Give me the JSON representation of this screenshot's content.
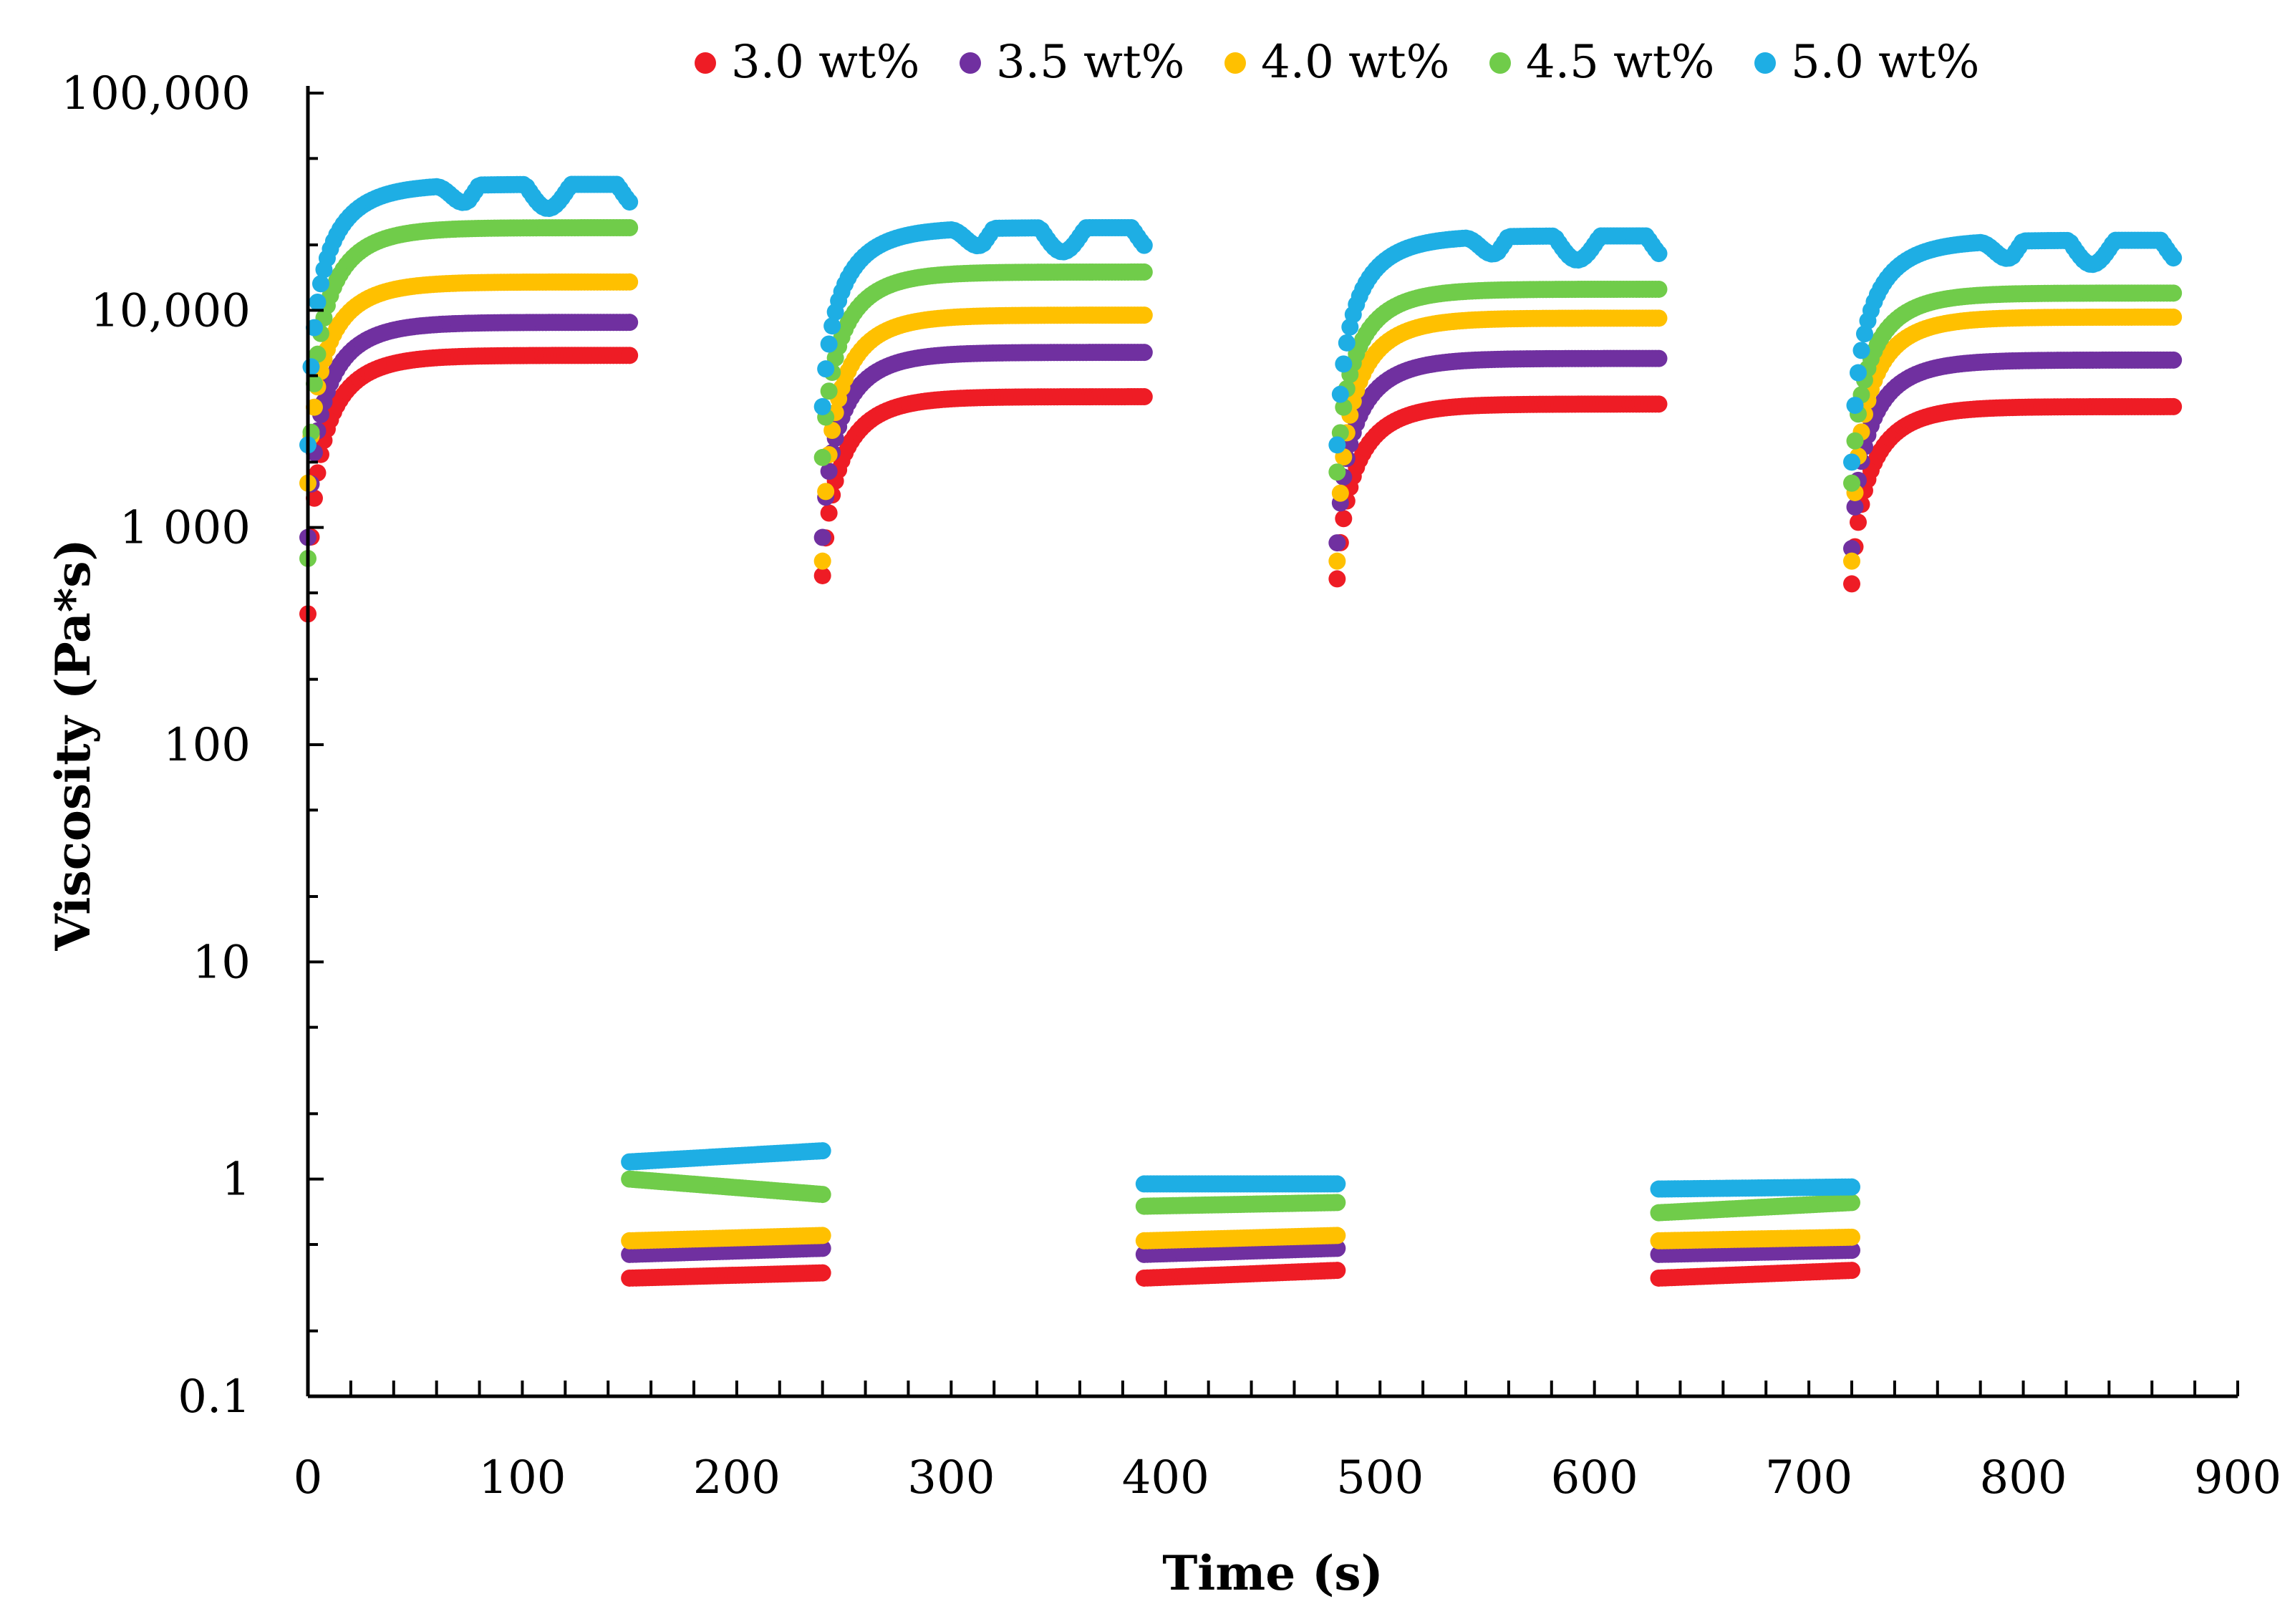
{
  "chart_data": {
    "type": "scatter",
    "title": "",
    "xlabel": "Time (s)",
    "ylabel": "Viscosity (Pa*s)",
    "xlim": [
      0,
      900
    ],
    "ylim": [
      0.1,
      100000
    ],
    "yscale": "log",
    "grid": false,
    "legend_position": "top",
    "x_ticks": [
      0,
      100,
      200,
      300,
      400,
      500,
      600,
      700,
      800,
      900
    ],
    "x_tick_labels": [
      "0",
      "100",
      "200",
      "300",
      "400",
      "500",
      "600",
      "700",
      "800",
      "900"
    ],
    "y_ticks": [
      0.1,
      1,
      10,
      100,
      1000,
      10000,
      100000
    ],
    "y_tick_labels": [
      "0.1",
      "1",
      "10",
      "100",
      "1 000",
      "10,000",
      "100,000"
    ],
    "segments": [
      {
        "start": 0,
        "end": 150,
        "phase": "recovery"
      },
      {
        "start": 150,
        "end": 240,
        "phase": "shear"
      },
      {
        "start": 240,
        "end": 390,
        "phase": "recovery"
      },
      {
        "start": 390,
        "end": 480,
        "phase": "shear"
      },
      {
        "start": 480,
        "end": 630,
        "phase": "recovery"
      },
      {
        "start": 630,
        "end": 720,
        "phase": "shear"
      },
      {
        "start": 720,
        "end": 870,
        "phase": "recovery"
      }
    ],
    "series": [
      {
        "name": "3.0 wt%",
        "color": "#ee1c25",
        "recovery_start": [
          400,
          600,
          580,
          550
        ],
        "recovery_plateau": [
          6200,
          4000,
          3700,
          3600
        ],
        "shear_start": [
          0.35,
          0.35,
          0.35
        ],
        "shear_end": [
          0.37,
          0.38,
          0.38
        ],
        "oscillation": 0
      },
      {
        "name": "3.5 wt%",
        "color": "#7030a0",
        "recovery_start": [
          900,
          900,
          850,
          800
        ],
        "recovery_plateau": [
          8800,
          6400,
          6000,
          5900
        ],
        "shear_start": [
          0.45,
          0.45,
          0.45
        ],
        "shear_end": [
          0.48,
          0.48,
          0.47
        ],
        "oscillation": 0
      },
      {
        "name": "4.0 wt%",
        "color": "#ffc000",
        "recovery_start": [
          1600,
          700,
          700,
          700
        ],
        "recovery_plateau": [
          13500,
          9500,
          9200,
          9300
        ],
        "shear_start": [
          0.52,
          0.52,
          0.52
        ],
        "shear_end": [
          0.55,
          0.55,
          0.54
        ],
        "oscillation": 0
      },
      {
        "name": "4.5 wt%",
        "color": "#70cc4a",
        "recovery_start": [
          720,
          2100,
          1800,
          1600
        ],
        "recovery_plateau": [
          24000,
          15000,
          12500,
          12000
        ],
        "shear_start": [
          1.0,
          0.75,
          0.7
        ],
        "shear_end": [
          0.85,
          0.78,
          0.78
        ],
        "oscillation": 0
      },
      {
        "name": "5.0 wt%",
        "color": "#1eaee4",
        "recovery_start": [
          2400,
          3600,
          2400,
          2000
        ],
        "recovery_plateau": [
          38000,
          24000,
          22000,
          21000
        ],
        "shear_start": [
          1.2,
          0.95,
          0.9
        ],
        "shear_end": [
          1.35,
          0.95,
          0.92
        ],
        "oscillation": 0.25
      }
    ]
  }
}
